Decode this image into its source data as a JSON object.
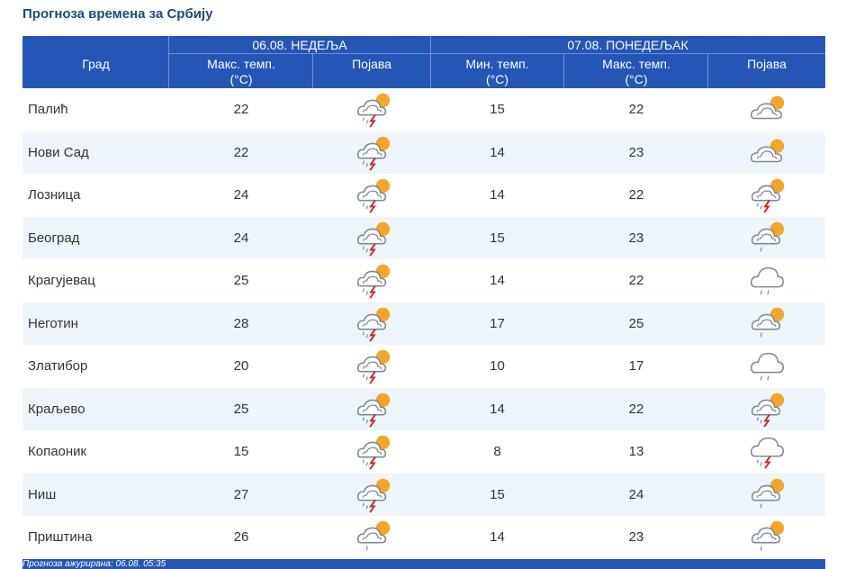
{
  "title": "Прогноза времена за Србију",
  "header": {
    "day1": "06.08. НЕДЕЉА",
    "day2": "07.08. ПОНЕДЕЉАК",
    "city": "Град",
    "max_temp_l1": "Макс. темп.",
    "min_temp_l1": "Мин. темп.",
    "unit": "(°C)",
    "phenomenon": "Појава"
  },
  "rows": [
    {
      "city": "Палић",
      "max1": "22",
      "icon1": "sun-cloud-rain-lightning-icon",
      "min2": "15",
      "max2": "22",
      "icon2": "partly-cloudy-sun-icon"
    },
    {
      "city": "Нови Сад",
      "max1": "22",
      "icon1": "sun-cloud-rain-lightning-icon",
      "min2": "14",
      "max2": "23",
      "icon2": "partly-cloudy-sun-icon"
    },
    {
      "city": "Лозница",
      "max1": "24",
      "icon1": "sun-cloud-rain-lightning-icon",
      "min2": "14",
      "max2": "22",
      "icon2": "sun-cloud-rain-lightning-icon"
    },
    {
      "city": "Београд",
      "max1": "24",
      "icon1": "sun-cloud-rain-lightning-icon",
      "min2": "15",
      "max2": "23",
      "icon2": "sun-cloud-rain-icon"
    },
    {
      "city": "Крагујевац",
      "max1": "25",
      "icon1": "sun-cloud-rain-lightning-icon",
      "min2": "14",
      "max2": "22",
      "icon2": "cloud-rain-icon"
    },
    {
      "city": "Неготин",
      "max1": "28",
      "icon1": "sun-cloud-rain-lightning-icon",
      "min2": "17",
      "max2": "25",
      "icon2": "sun-cloud-rain-icon"
    },
    {
      "city": "Златибор",
      "max1": "20",
      "icon1": "sun-cloud-rain-lightning-icon",
      "min2": "10",
      "max2": "17",
      "icon2": "cloud-rain-icon"
    },
    {
      "city": "Краљево",
      "max1": "25",
      "icon1": "sun-cloud-rain-lightning-icon",
      "min2": "14",
      "max2": "22",
      "icon2": "sun-cloud-rain-lightning-icon"
    },
    {
      "city": "Копаоник",
      "max1": "15",
      "icon1": "sun-cloud-rain-lightning-icon",
      "min2": "8",
      "max2": "13",
      "icon2": "cloud-rain-lightning-icon"
    },
    {
      "city": "Ниш",
      "max1": "27",
      "icon1": "sun-cloud-rain-lightning-icon",
      "min2": "15",
      "max2": "24",
      "icon2": "sun-cloud-rain-icon"
    },
    {
      "city": "Приштина",
      "max1": "26",
      "icon1": "sun-cloud-rain-icon",
      "min2": "14",
      "max2": "23",
      "icon2": "sun-cloud-rain-icon"
    }
  ],
  "footer": "Прогноза ажурирана:  06.08.  05:35",
  "colors": {
    "header_bg": "#2456b6",
    "title": "#1b4a7c",
    "row_alt": "#eef6fb",
    "sun": "#f5a623",
    "lightning": "#c62828",
    "cloud_stroke": "#7d8a96"
  }
}
